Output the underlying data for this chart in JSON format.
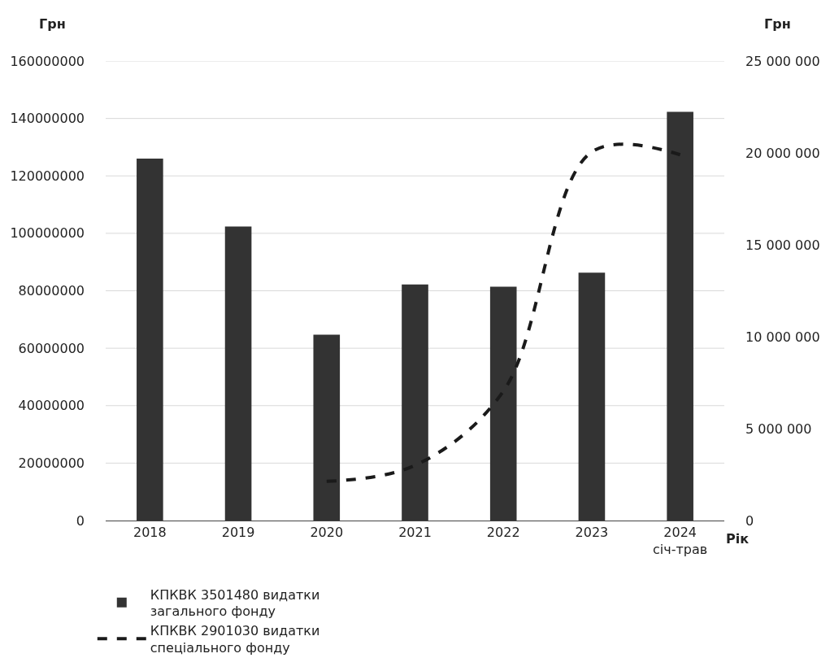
{
  "chart_data": {
    "type": "bar",
    "categories": [
      "2018",
      "2019",
      "2020",
      "2021",
      "2022",
      "2023",
      "2024\nсіч-трав"
    ],
    "xlabel": "Рік",
    "ylabel": "Грн",
    "y2label": "Грн",
    "series": [
      {
        "name": "КПКВК 3501480 видатки\nзагального фонду",
        "color": "#333333",
        "values": [
          126000000,
          102400000,
          64700000,
          82200000,
          81400000,
          86300000,
          142300000
        ]
      },
      {
        "name": "КПКВК 2901030 видатки\nспеціального фонду",
        "type": "line",
        "axis": "y2",
        "color": "#1a1a1a",
        "line_style": "dashed",
        "values": [
          null,
          null,
          2130000,
          3000000,
          7040000,
          20050000,
          19900000
        ]
      }
    ],
    "ylim": [
      0,
      160000000
    ],
    "yticks": [
      0,
      20000000,
      40000000,
      60000000,
      80000000,
      100000000,
      120000000,
      140000000,
      160000000
    ],
    "y2lim": [
      0,
      25000000
    ],
    "y2ticks": [
      0,
      {
        "value": 5000000,
        "label": "5 000 000"
      },
      {
        "value": 10000000,
        "label": "10 000 000"
      },
      {
        "value": 15000000,
        "label": "15 000 000"
      },
      {
        "value": 20000000,
        "label": "20 000 000"
      },
      {
        "value": 25000000,
        "label": "25 000 000"
      }
    ],
    "grid": "y",
    "legend": "bottom"
  }
}
